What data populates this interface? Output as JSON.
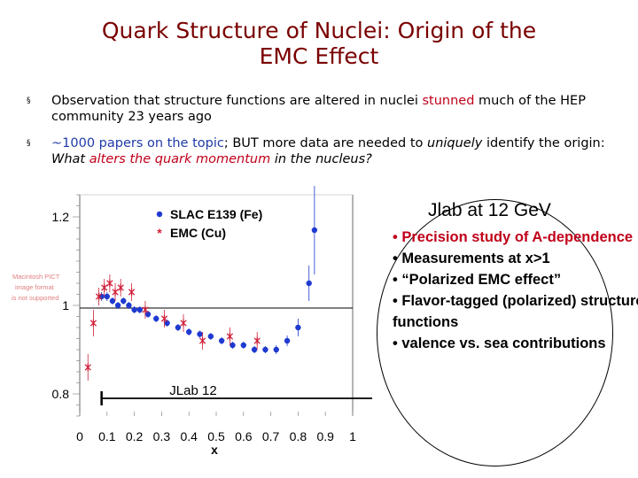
{
  "title_line1": "Quark Structure of Nuclei: Origin of the",
  "title_line2": "EMC Effect",
  "bullets": [
    {
      "mark": "§",
      "parts": [
        {
          "text": "Observation that structure functions are altered in nuclei ",
          "style": "plain"
        },
        {
          "text": "stunned",
          "style": "red"
        },
        {
          "text": " much of the HEP community 23 years ago",
          "style": "plain"
        }
      ]
    },
    {
      "mark": "§",
      "parts": [
        {
          "text": "~1000 papers on the topic",
          "style": "blue"
        },
        {
          "text": "; BUT more data are needed to ",
          "style": "plain"
        },
        {
          "text": "uniquely",
          "style": "italic"
        },
        {
          "text": " identify the origin: ",
          "style": "plain"
        },
        {
          "text": "What ",
          "style": "italic"
        },
        {
          "text": "alters the quark momentum",
          "style": "italic-red"
        },
        {
          "text": " in the nucleus?",
          "style": "italic"
        }
      ]
    }
  ],
  "broken_image_text": [
    "Macintosh PICT",
    "image format",
    "is not supported"
  ],
  "bubble": {
    "title": "Jlab at 12 GeV",
    "items": [
      "• Precision study of A-dependence",
      "• Measurements at x>1",
      "• “Polarized EMC effect”",
      "• Flavor-tagged (polarized) structure functions",
      "• valence vs. sea contributions"
    ]
  },
  "colors": {
    "title": "#7a0000",
    "slac": "#1f3ad0",
    "emc": "#d0203a",
    "bubble_first": "#c0001a"
  },
  "chart_data": {
    "type": "scatter",
    "xlabel": "x",
    "ylabel": "",
    "xlim": [
      0,
      1
    ],
    "ylim": [
      0.75,
      1.25
    ],
    "x_ticks": [
      "0",
      "0.1",
      "0.2",
      "0.3",
      "0.4",
      "0.5",
      "0.6",
      "0.7",
      "0.8",
      "0.9",
      "1"
    ],
    "y_ticks": [
      {
        "label": "1.2",
        "value": 1.2
      },
      {
        "label": "1",
        "value": 1.0
      },
      {
        "label": "0.8",
        "value": 0.8
      }
    ],
    "legend_position": "top-left",
    "series": [
      {
        "name": "SLAC E139 (Fe)",
        "marker": "circle",
        "color": "#1f3ad0",
        "x": [
          0.08,
          0.1,
          0.12,
          0.14,
          0.16,
          0.18,
          0.2,
          0.22,
          0.25,
          0.28,
          0.32,
          0.36,
          0.4,
          0.44,
          0.48,
          0.52,
          0.56,
          0.6,
          0.64,
          0.68,
          0.72,
          0.76,
          0.8,
          0.84,
          0.86
        ],
        "y": [
          1.02,
          1.02,
          1.01,
          1.0,
          1.01,
          1.0,
          0.99,
          0.99,
          0.98,
          0.97,
          0.96,
          0.95,
          0.94,
          0.935,
          0.93,
          0.92,
          0.91,
          0.91,
          0.9,
          0.9,
          0.9,
          0.92,
          0.95,
          1.05,
          1.17
        ],
        "y_err": [
          0.01,
          0.01,
          0.008,
          0.008,
          0.008,
          0.008,
          0.008,
          0.008,
          0.008,
          0.008,
          0.008,
          0.008,
          0.008,
          0.008,
          0.008,
          0.008,
          0.008,
          0.008,
          0.008,
          0.008,
          0.01,
          0.012,
          0.02,
          0.04,
          0.1
        ]
      },
      {
        "name": "EMC (Cu)",
        "marker": "x",
        "color": "#d0203a",
        "x": [
          0.03,
          0.05,
          0.07,
          0.09,
          0.11,
          0.13,
          0.15,
          0.19,
          0.24,
          0.31,
          0.38,
          0.45,
          0.55,
          0.65
        ],
        "y": [
          0.86,
          0.96,
          1.02,
          1.04,
          1.05,
          1.03,
          1.04,
          1.03,
          0.99,
          0.97,
          0.96,
          0.92,
          0.93,
          0.92
        ],
        "y_err": [
          0.03,
          0.03,
          0.02,
          0.02,
          0.02,
          0.02,
          0.02,
          0.02,
          0.02,
          0.02,
          0.02,
          0.02,
          0.02,
          0.02
        ]
      }
    ],
    "annotation": {
      "label": "JLab 12",
      "x_from": 0.08,
      "x_to": 0.84,
      "y": 0.79
    }
  }
}
